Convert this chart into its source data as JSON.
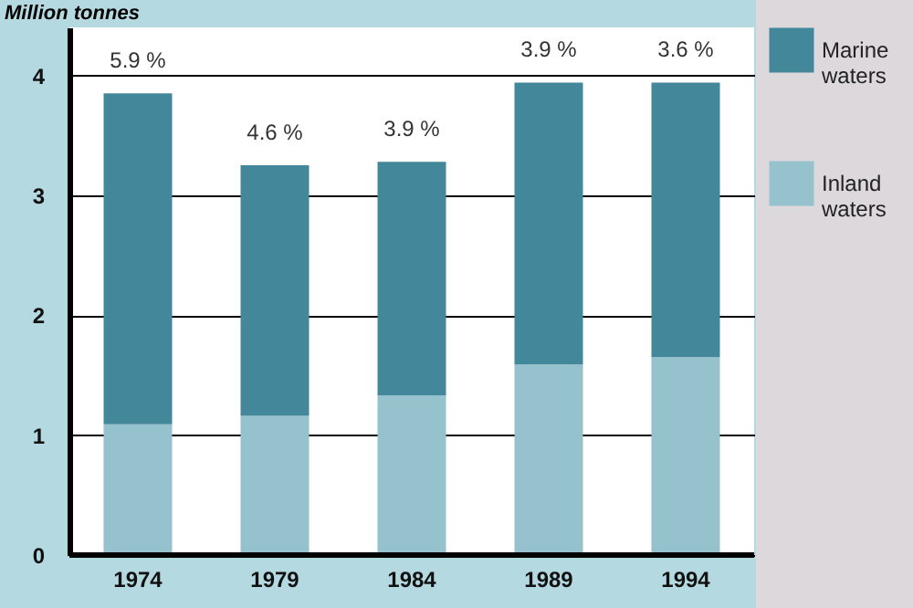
{
  "chart_data": {
    "type": "bar",
    "stacked": true,
    "ylabel": "Million tonnes",
    "categories": [
      "1974",
      "1979",
      "1984",
      "1989",
      "1994"
    ],
    "series": [
      {
        "name": "Inland waters",
        "color": "#95c2cd",
        "values": [
          1.09,
          1.16,
          1.33,
          1.59,
          1.65
        ]
      },
      {
        "name": "Marine waters",
        "color": "#43889a",
        "values": [
          2.76,
          2.09,
          1.95,
          2.35,
          2.29
        ]
      }
    ],
    "annotations": [
      {
        "text": "5.9 %",
        "x": "1974",
        "y": 3.85
      },
      {
        "text": "4.6 %",
        "x": "1979",
        "y": 3.25
      },
      {
        "text": "3.9 %",
        "x": "1984",
        "y": 3.28
      },
      {
        "text": "3.9 %",
        "x": "1989",
        "y": 3.94
      },
      {
        "text": "3.6 %",
        "x": "1994",
        "y": 3.94
      }
    ],
    "ylim": [
      0,
      4.4
    ],
    "yticks": [
      0,
      1,
      2,
      3,
      4
    ],
    "grid": "y",
    "legend": "top right"
  }
}
